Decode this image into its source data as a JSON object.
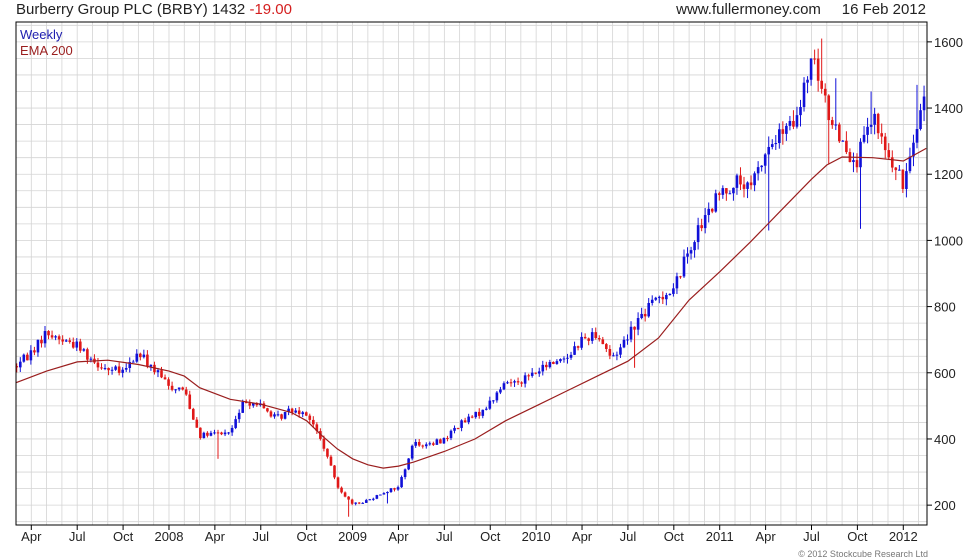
{
  "header": {
    "name": "Burberry Group PLC (BRBY)",
    "price": "1432",
    "change": "-19.00",
    "site": "www.fullermoney.com",
    "date": "16 Feb 2012"
  },
  "footer": {
    "credit": "© 2012 Stockcube Research Ltd"
  },
  "colors": {
    "up": "#1010d8",
    "down": "#e01818",
    "ema": "#9a1e1e",
    "grid": "#d4d4d4",
    "frame": "#000000"
  },
  "chart_data": {
    "type": "candlestick-weekly",
    "legend": [
      "Weekly",
      "EMA 200"
    ],
    "ylim": [
      140,
      1660
    ],
    "y_ticks": [
      200,
      400,
      600,
      800,
      1000,
      1200,
      1400,
      1600
    ],
    "x_ticks": [
      {
        "label": "Apr",
        "month": 1
      },
      {
        "label": "Jul",
        "month": 4
      },
      {
        "label": "Oct",
        "month": 7
      },
      {
        "label": "2008",
        "month": 10
      },
      {
        "label": "Apr",
        "month": 13
      },
      {
        "label": "Jul",
        "month": 16
      },
      {
        "label": "Oct",
        "month": 19
      },
      {
        "label": "2009",
        "month": 22
      },
      {
        "label": "Apr",
        "month": 25
      },
      {
        "label": "Jul",
        "month": 28
      },
      {
        "label": "Oct",
        "month": 31
      },
      {
        "label": "2010",
        "month": 34
      },
      {
        "label": "Apr",
        "month": 37
      },
      {
        "label": "Jul",
        "month": 40
      },
      {
        "label": "Oct",
        "month": 43
      },
      {
        "label": "2011",
        "month": 46
      },
      {
        "label": "Apr",
        "month": 49
      },
      {
        "label": "Jul",
        "month": 52
      },
      {
        "label": "Oct",
        "month": 55
      },
      {
        "label": "2012",
        "month": 58
      }
    ],
    "x_range_months": [
      0,
      59.55
    ],
    "close_path": [
      [
        0.0,
        620
      ],
      [
        1.0,
        665
      ],
      [
        2.0,
        720
      ],
      [
        3.0,
        700
      ],
      [
        4.0,
        685
      ],
      [
        5.0,
        640
      ],
      [
        6.0,
        610
      ],
      [
        7.0,
        600
      ],
      [
        8.0,
        660
      ],
      [
        9.0,
        610
      ],
      [
        10.0,
        560
      ],
      [
        11.0,
        550
      ],
      [
        12.0,
        410
      ],
      [
        13.0,
        415
      ],
      [
        14.0,
        420
      ],
      [
        15.0,
        520
      ],
      [
        16.0,
        500
      ],
      [
        17.0,
        460
      ],
      [
        18.0,
        490
      ],
      [
        19.0,
        480
      ],
      [
        20.0,
        390
      ],
      [
        21.0,
        260
      ],
      [
        22.0,
        200
      ],
      [
        23.0,
        215
      ],
      [
        24.0,
        240
      ],
      [
        25.0,
        255
      ],
      [
        26.0,
        390
      ],
      [
        27.0,
        380
      ],
      [
        28.0,
        400
      ],
      [
        29.0,
        445
      ],
      [
        30.0,
        470
      ],
      [
        31.0,
        510
      ],
      [
        32.0,
        570
      ],
      [
        33.0,
        580
      ],
      [
        34.0,
        600
      ],
      [
        35.0,
        630
      ],
      [
        36.0,
        650
      ],
      [
        37.0,
        700
      ],
      [
        38.0,
        720
      ],
      [
        39.0,
        640
      ],
      [
        40.0,
        720
      ],
      [
        41.0,
        780
      ],
      [
        42.0,
        830
      ],
      [
        43.0,
        850
      ],
      [
        44.0,
        980
      ],
      [
        45.0,
        1060
      ],
      [
        46.0,
        1140
      ],
      [
        47.0,
        1180
      ],
      [
        48.0,
        1150
      ],
      [
        49.0,
        1270
      ],
      [
        50.0,
        1320
      ],
      [
        51.0,
        1350
      ],
      [
        52.0,
        1550
      ],
      [
        53.0,
        1400
      ],
      [
        54.0,
        1300
      ],
      [
        55.0,
        1240
      ],
      [
        56.0,
        1370
      ],
      [
        57.0,
        1250
      ],
      [
        58.0,
        1170
      ],
      [
        58.8,
        1350
      ],
      [
        59.4,
        1432
      ]
    ],
    "ema_path": [
      [
        0.0,
        570
      ],
      [
        2.0,
        605
      ],
      [
        4.0,
        633
      ],
      [
        6.0,
        638
      ],
      [
        8.0,
        625
      ],
      [
        10.0,
        605
      ],
      [
        11.0,
        590
      ],
      [
        12.0,
        555
      ],
      [
        14.0,
        520
      ],
      [
        16.0,
        505
      ],
      [
        18.0,
        480
      ],
      [
        19.0,
        455
      ],
      [
        20.0,
        410
      ],
      [
        21.0,
        370
      ],
      [
        22.0,
        340
      ],
      [
        23.0,
        322
      ],
      [
        24.0,
        312
      ],
      [
        25.0,
        318
      ],
      [
        26.0,
        330
      ],
      [
        28.0,
        362
      ],
      [
        30.0,
        400
      ],
      [
        32.0,
        455
      ],
      [
        34.0,
        500
      ],
      [
        36.0,
        545
      ],
      [
        38.0,
        590
      ],
      [
        40.0,
        635
      ],
      [
        42.0,
        705
      ],
      [
        44.0,
        820
      ],
      [
        46.0,
        905
      ],
      [
        48.0,
        995
      ],
      [
        50.0,
        1090
      ],
      [
        52.0,
        1185
      ],
      [
        53.0,
        1228
      ],
      [
        54.0,
        1252
      ],
      [
        56.0,
        1250
      ],
      [
        57.0,
        1245
      ],
      [
        58.0,
        1240
      ],
      [
        59.5,
        1278
      ]
    ],
    "dips": [
      [
        13.1,
        340
      ],
      [
        21.7,
        165
      ],
      [
        24.3,
        205
      ],
      [
        40.4,
        615
      ],
      [
        49.1,
        1030
      ],
      [
        55.3,
        1035
      ],
      [
        53.2,
        1230
      ],
      [
        58.1,
        1130
      ]
    ],
    "spikes": [
      [
        52.6,
        1610
      ],
      [
        53.5,
        1490
      ],
      [
        55.8,
        1450
      ],
      [
        58.9,
        1470
      ]
    ]
  }
}
